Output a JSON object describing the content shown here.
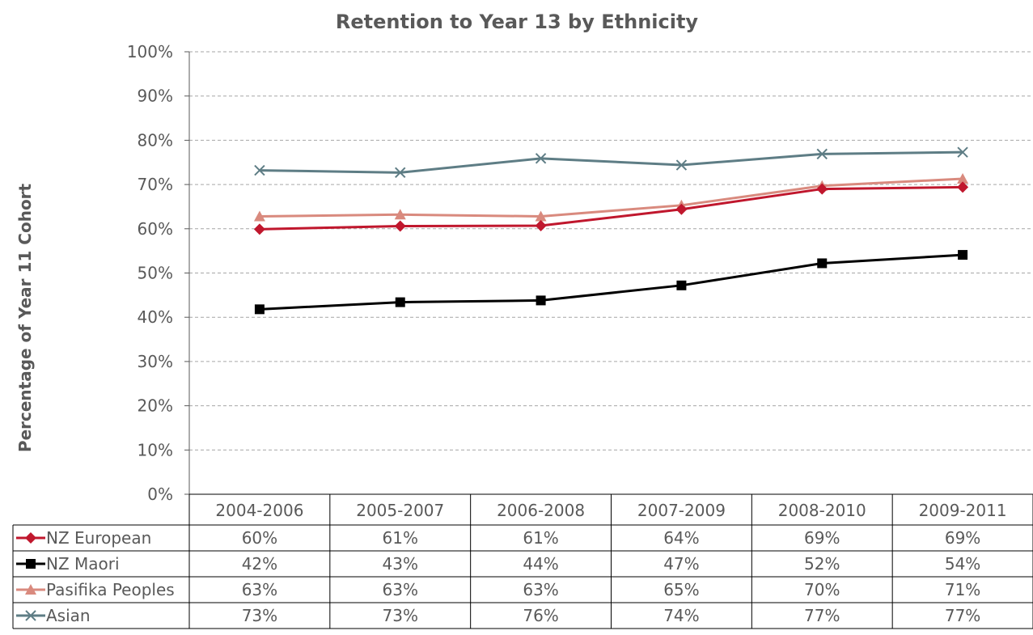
{
  "chart_data": {
    "type": "line",
    "title": "Retention to Year 13 by Ethnicity",
    "ylabel": "Percentage of Year 11 Cohort",
    "ylim": [
      0,
      100
    ],
    "yticks": [
      "0%",
      "10%",
      "20%",
      "30%",
      "40%",
      "50%",
      "60%",
      "70%",
      "80%",
      "90%",
      "100%"
    ],
    "grid": true,
    "legend": "data-table",
    "categories": [
      "2004-2006",
      "2005-2007",
      "2006-2008",
      "2007-2009",
      "2008-2010",
      "2009-2011"
    ],
    "series": [
      {
        "name": "NZ European",
        "color": "#c0172d",
        "marker": "diamond",
        "values": [
          59.9,
          60.6,
          60.7,
          64.4,
          69.0,
          69.4
        ],
        "labels": [
          "60%",
          "61%",
          "61%",
          "64%",
          "69%",
          "69%"
        ]
      },
      {
        "name": "NZ Maori",
        "color": "#000000",
        "marker": "square",
        "values": [
          41.8,
          43.4,
          43.8,
          47.2,
          52.2,
          54.1
        ],
        "labels": [
          "42%",
          "43%",
          "44%",
          "47%",
          "52%",
          "54%"
        ]
      },
      {
        "name": "Pasifika Peoples",
        "color": "#d98a7e",
        "marker": "triangle",
        "values": [
          62.8,
          63.2,
          62.8,
          65.3,
          69.7,
          71.3
        ],
        "labels": [
          "63%",
          "63%",
          "63%",
          "65%",
          "70%",
          "71%"
        ]
      },
      {
        "name": "Asian",
        "color": "#5e7d85",
        "marker": "x",
        "values": [
          73.2,
          72.7,
          75.9,
          74.4,
          76.9,
          77.3
        ],
        "labels": [
          "73%",
          "73%",
          "76%",
          "74%",
          "77%",
          "77%"
        ]
      }
    ]
  }
}
